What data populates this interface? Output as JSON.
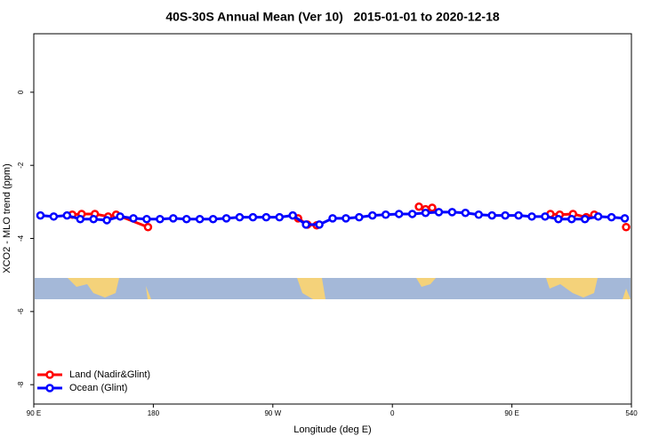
{
  "chart_data": {
    "type": "line",
    "title": "40S-30S Annual Mean (Ver 10)   2015-01-01 to 2020-12-18",
    "x_label": "Longitude (deg E)",
    "y_label": "XCO2 - MLO trend (ppm)",
    "xlim": [
      90,
      540
    ],
    "ylim": [
      -8.53,
      1.6
    ],
    "xticks": [
      {
        "value": 90,
        "label": "90 E"
      },
      180,
      {
        "value": 270,
        "label": "90 W"
      },
      {
        "value": 360,
        "label": "0"
      },
      {
        "value": 450,
        "label": "90 E"
      },
      540
    ],
    "yticks": [
      0,
      -2,
      -4,
      -6,
      -8
    ],
    "legend": "bottom-left",
    "series": [
      {
        "name": "Land (Nadir&Glint)",
        "color": "#ff0000",
        "x": [
          119,
          126,
          136,
          146,
          152,
          176,
          230,
          289,
          296,
          303,
          340,
          380,
          385,
          390,
          430,
          479,
          486,
          496,
          506,
          512,
          520,
          536
        ],
        "values": [
          -3.35,
          -3.33,
          -3.33,
          -3.4,
          -3.35,
          -3.69,
          null,
          -3.45,
          -3.62,
          -3.64,
          null,
          -3.13,
          -3.2,
          -3.16,
          null,
          -3.33,
          -3.35,
          -3.33,
          -3.42,
          -3.35,
          null,
          -3.69
        ]
      },
      {
        "name": "Ocean (Glint)",
        "color": "#0000ff",
        "x": [
          95,
          105,
          115,
          125,
          135,
          145,
          155,
          165,
          175,
          185,
          195,
          205,
          215,
          225,
          235,
          245,
          255,
          265,
          275,
          285,
          295,
          305,
          315,
          325,
          335,
          345,
          355,
          365,
          375,
          385,
          395,
          405,
          415,
          425,
          435,
          445,
          455,
          465,
          475,
          485,
          495,
          505,
          515,
          525,
          535
        ],
        "values": [
          -3.37,
          -3.4,
          -3.37,
          -3.47,
          -3.47,
          -3.5,
          -3.4,
          -3.45,
          -3.47,
          -3.47,
          -3.45,
          -3.47,
          -3.47,
          -3.47,
          -3.45,
          -3.42,
          -3.42,
          -3.42,
          -3.42,
          -3.37,
          -3.62,
          -3.62,
          -3.45,
          -3.45,
          -3.42,
          -3.37,
          -3.35,
          -3.33,
          -3.33,
          -3.3,
          -3.28,
          -3.28,
          -3.3,
          -3.35,
          -3.37,
          -3.37,
          -3.37,
          -3.4,
          -3.4,
          -3.47,
          -3.47,
          -3.47,
          -3.4,
          -3.42,
          -3.45
        ]
      }
    ]
  }
}
